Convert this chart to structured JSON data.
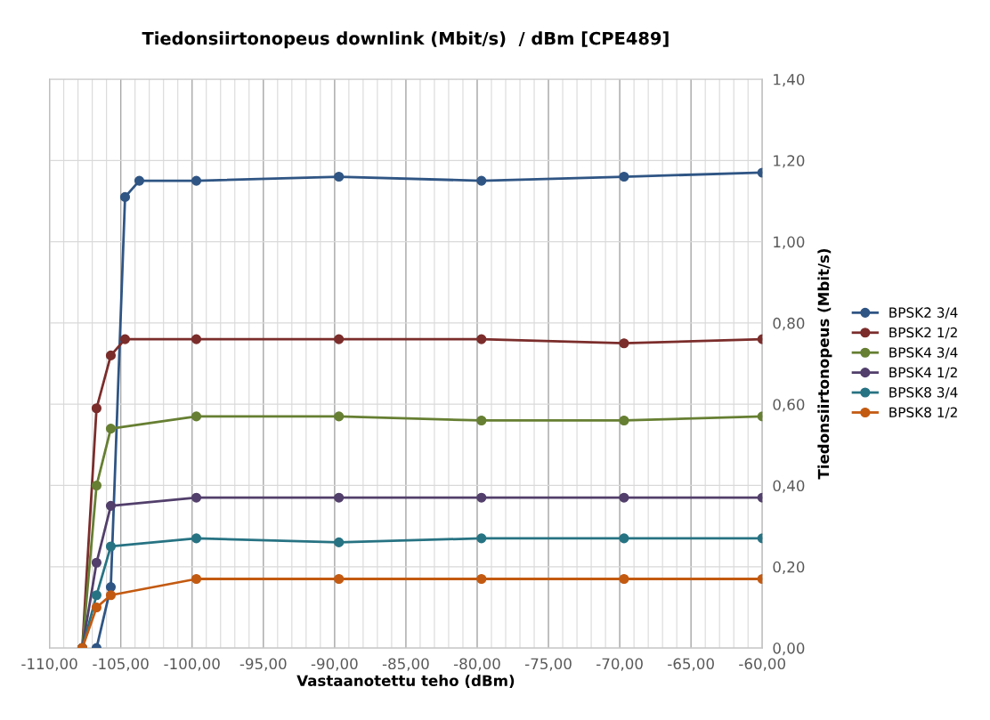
{
  "chart_data": {
    "type": "line",
    "title": "Tiedonsiirtonopeus downlink (Mbit/s)  / dBm [CPE489]",
    "xlabel": "Vastaanotettu teho (dBm)",
    "ylabel": "Tiedonsiirtonopeus (Mbit/s)",
    "xlim": [
      -110,
      -60
    ],
    "ylim": [
      0,
      1.4
    ],
    "xticks": [
      {
        "value": -110,
        "label": "-110,00"
      },
      {
        "value": -105,
        "label": "-105,00"
      },
      {
        "value": -100,
        "label": "-100,00"
      },
      {
        "value": -95,
        "label": "-95,00"
      },
      {
        "value": -90,
        "label": "-90,00"
      },
      {
        "value": -85,
        "label": "-85,00"
      },
      {
        "value": -80,
        "label": "-80,00"
      },
      {
        "value": -75,
        "label": "-75,00"
      },
      {
        "value": -70,
        "label": "-70,00"
      },
      {
        "value": -65,
        "label": "-65,00"
      },
      {
        "value": -60,
        "label": "-60,00"
      }
    ],
    "yticks": [
      {
        "value": 0,
        "label": "0,00"
      },
      {
        "value": 0.2,
        "label": "0,20"
      },
      {
        "value": 0.4,
        "label": "0,40"
      },
      {
        "value": 0.6,
        "label": "0,60"
      },
      {
        "value": 0.8,
        "label": "0,80"
      },
      {
        "value": 1.0,
        "label": "1,00"
      },
      {
        "value": 1.2,
        "label": "1,20"
      },
      {
        "value": 1.4,
        "label": "1,40"
      }
    ],
    "grid": true,
    "legend": "right",
    "marker": "circle",
    "line_style": "solid",
    "series": [
      {
        "name": "BPSK2 3/4",
        "color": "#2f5584",
        "x": [
          -106.7,
          -105.7,
          -104.7,
          -103.7,
          -99.7,
          -89.7,
          -79.7,
          -69.7,
          -60
        ],
        "values": [
          0,
          0.15,
          1.11,
          1.15,
          1.15,
          1.16,
          1.15,
          1.16,
          1.17
        ]
      },
      {
        "name": "BPSK2 1/2",
        "color": "#7b2d2b",
        "x": [
          -107.7,
          -106.7,
          -105.7,
          -104.7,
          -99.7,
          -89.7,
          -79.7,
          -69.7,
          -60
        ],
        "values": [
          0,
          0.59,
          0.72,
          0.76,
          0.76,
          0.76,
          0.76,
          0.75,
          0.76
        ]
      },
      {
        "name": "BPSK4 3/4",
        "color": "#667f32",
        "x": [
          -107.7,
          -106.7,
          -105.7,
          -99.7,
          -89.7,
          -79.7,
          -69.7,
          -60
        ],
        "values": [
          0,
          0.4,
          0.54,
          0.57,
          0.57,
          0.56,
          0.56,
          0.57
        ]
      },
      {
        "name": "BPSK4 1/2",
        "color": "#523f6b",
        "x": [
          -107.7,
          -106.7,
          -105.7,
          -99.7,
          -89.7,
          -79.7,
          -69.7,
          -60
        ],
        "values": [
          0,
          0.21,
          0.35,
          0.37,
          0.37,
          0.37,
          0.37,
          0.37
        ]
      },
      {
        "name": "BPSK8 3/4",
        "color": "#277383",
        "x": [
          -107.7,
          -106.7,
          -105.7,
          -99.7,
          -89.7,
          -79.7,
          -69.7,
          -60
        ],
        "values": [
          0,
          0.13,
          0.25,
          0.27,
          0.26,
          0.27,
          0.27,
          0.27
        ]
      },
      {
        "name": "BPSK8 1/2",
        "color": "#c35a11",
        "x": [
          -107.7,
          -106.7,
          -105.7,
          -99.7,
          -89.7,
          -79.7,
          -69.7,
          -60
        ],
        "values": [
          0,
          0.1,
          0.13,
          0.17,
          0.17,
          0.17,
          0.17,
          0.17
        ]
      }
    ]
  }
}
